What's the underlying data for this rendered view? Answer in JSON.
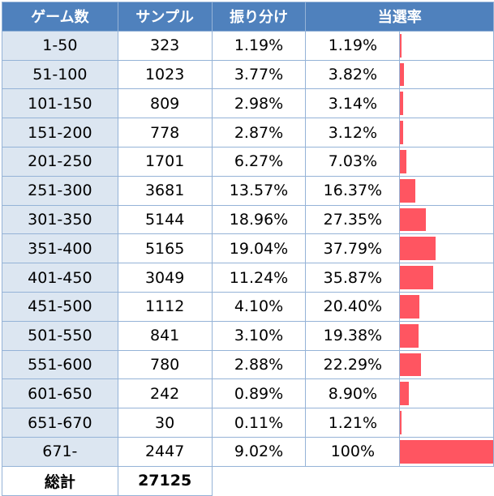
{
  "table": {
    "headers": [
      "ゲーム数",
      "サンプル",
      "振り分け",
      "当選率"
    ],
    "rows": [
      {
        "games": "1-50",
        "sample": "323",
        "share": "1.19%",
        "rate": "1.19%",
        "rate_value": 1.19
      },
      {
        "games": "51-100",
        "sample": "1023",
        "share": "3.77%",
        "rate": "3.82%",
        "rate_value": 3.82
      },
      {
        "games": "101-150",
        "sample": "809",
        "share": "2.98%",
        "rate": "3.14%",
        "rate_value": 3.14
      },
      {
        "games": "151-200",
        "sample": "778",
        "share": "2.87%",
        "rate": "3.12%",
        "rate_value": 3.12
      },
      {
        "games": "201-250",
        "sample": "1701",
        "share": "6.27%",
        "rate": "7.03%",
        "rate_value": 7.03
      },
      {
        "games": "251-300",
        "sample": "3681",
        "share": "13.57%",
        "rate": "16.37%",
        "rate_value": 16.37
      },
      {
        "games": "301-350",
        "sample": "5144",
        "share": "18.96%",
        "rate": "27.35%",
        "rate_value": 27.35
      },
      {
        "games": "351-400",
        "sample": "5165",
        "share": "19.04%",
        "rate": "37.79%",
        "rate_value": 37.79
      },
      {
        "games": "401-450",
        "sample": "3049",
        "share": "11.24%",
        "rate": "35.87%",
        "rate_value": 35.87
      },
      {
        "games": "451-500",
        "sample": "1112",
        "share": "4.10%",
        "rate": "20.40%",
        "rate_value": 20.4
      },
      {
        "games": "501-550",
        "sample": "841",
        "share": "3.10%",
        "rate": "19.38%",
        "rate_value": 19.38
      },
      {
        "games": "551-600",
        "sample": "780",
        "share": "2.88%",
        "rate": "22.29%",
        "rate_value": 22.29
      },
      {
        "games": "601-650",
        "sample": "242",
        "share": "0.89%",
        "rate": "8.90%",
        "rate_value": 8.9
      },
      {
        "games": "651-670",
        "sample": "30",
        "share": "0.11%",
        "rate": "1.21%",
        "rate_value": 1.21
      },
      {
        "games": "671-",
        "sample": "2447",
        "share": "9.02%",
        "rate": "100%",
        "rate_value": 100
      }
    ],
    "total": {
      "label": "総計",
      "value": "27125"
    }
  },
  "colors": {
    "header": "#4f81bd",
    "games_cell": "#dce6f1",
    "bar": "#ff5561",
    "border": "#95b3d7"
  }
}
